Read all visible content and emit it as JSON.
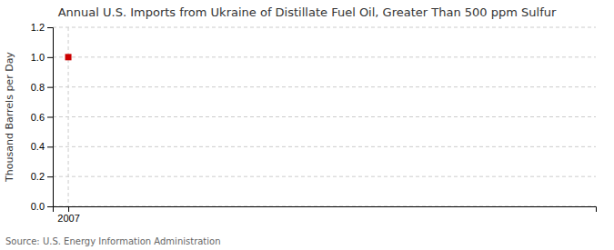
{
  "chart_data": {
    "type": "scatter",
    "title": "Annual U.S. Imports from Ukraine of Distillate Fuel Oil, Greater Than 500 ppm Sulfur",
    "y_label": "Thousand Barrels per Day",
    "source": "Source: U.S. Energy Information Administration",
    "x": [
      2007
    ],
    "values": [
      1.0
    ],
    "color": "#cc0000",
    "marker": "square",
    "xlim": [
      2006.5,
      2024
    ],
    "xticks": [
      2007
    ],
    "ylim": [
      0.0,
      1.2
    ],
    "yticks": [
      {
        "value": 0.0,
        "label": "0.0"
      },
      0.2,
      0.4,
      0.6,
      0.8,
      {
        "value": 1.0,
        "label": "1.0"
      },
      1.2
    ],
    "grid": true
  }
}
